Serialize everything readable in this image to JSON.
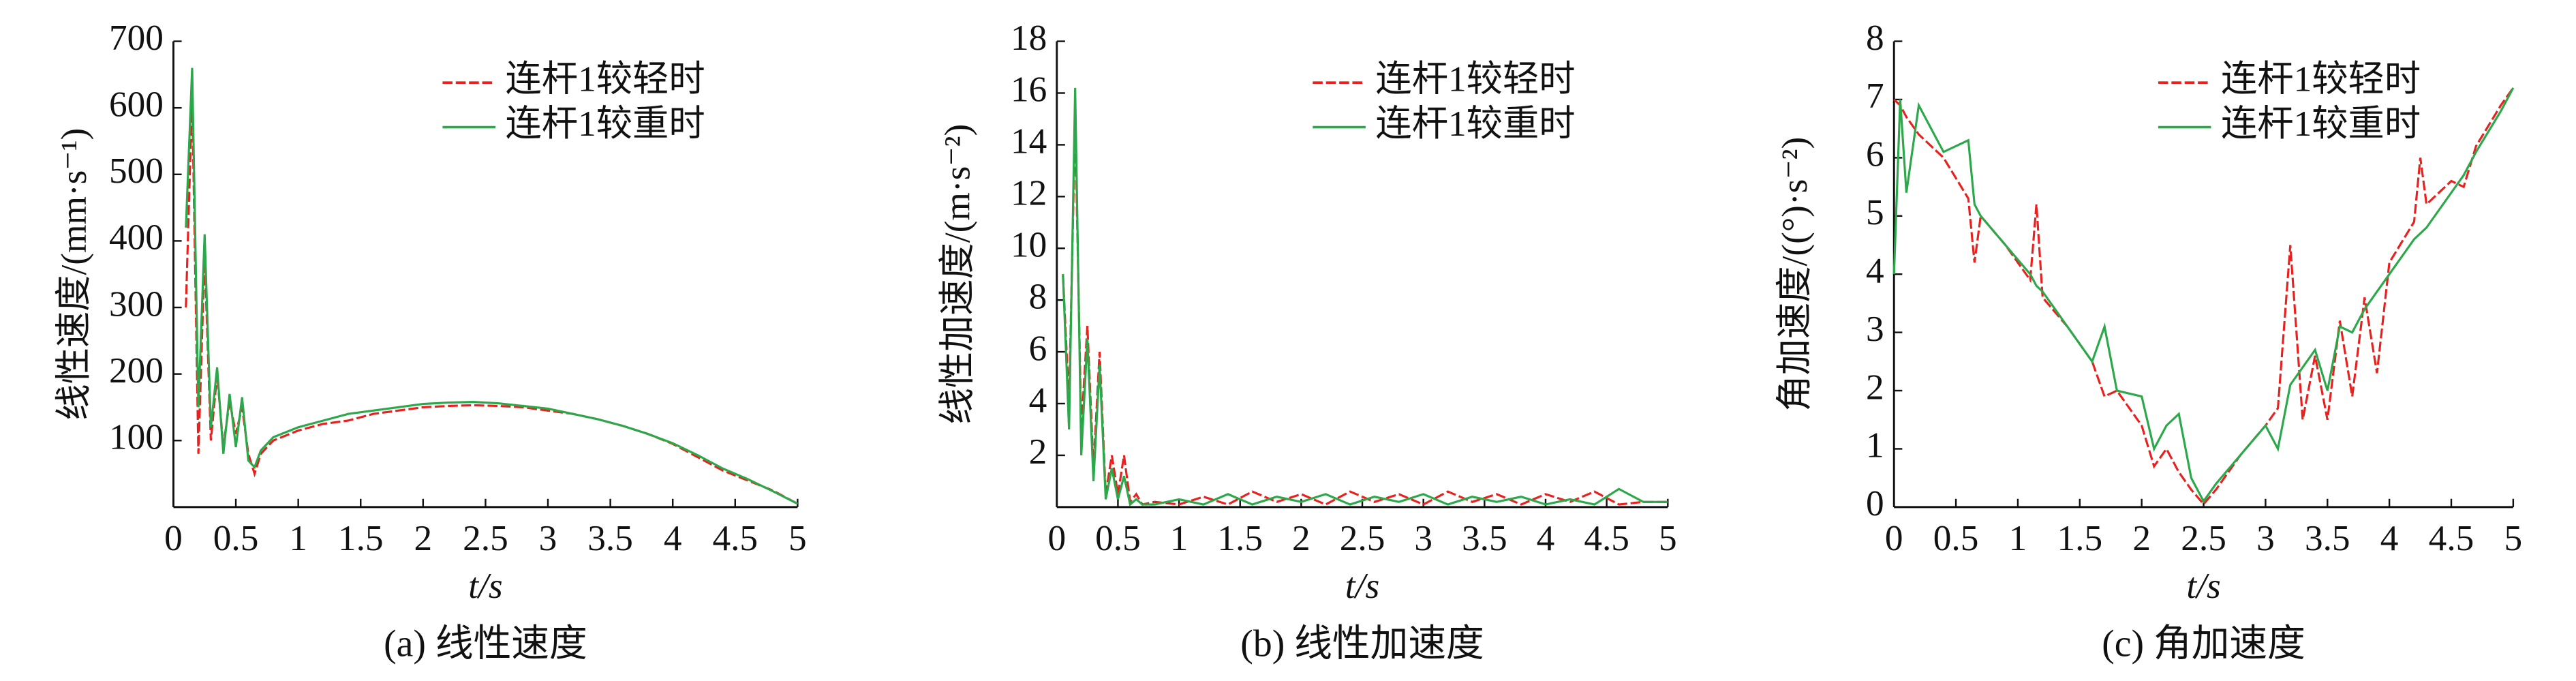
{
  "chart_data": [
    {
      "type": "line",
      "caption": "(a) 线性速度",
      "xlabel": "t/s",
      "ylabel": "线性速度/(mm·s⁻¹)",
      "xlim": [
        0,
        5
      ],
      "xticks": [
        0,
        0.5,
        1,
        1.5,
        2,
        2.5,
        3,
        3.5,
        4,
        4.5,
        5
      ],
      "ylim": [
        0,
        700
      ],
      "yticks": [
        100,
        200,
        300,
        400,
        500,
        600,
        700
      ],
      "legend": "upper right",
      "x": [
        0.1,
        0.15,
        0.2,
        0.25,
        0.3,
        0.35,
        0.4,
        0.45,
        0.5,
        0.55,
        0.6,
        0.65,
        0.7,
        0.8,
        1.0,
        1.2,
        1.4,
        1.6,
        1.8,
        2.0,
        2.2,
        2.4,
        2.6,
        2.8,
        3.0,
        3.2,
        3.4,
        3.6,
        3.8,
        4.0,
        4.2,
        4.4,
        4.6,
        4.8,
        5.0
      ],
      "series": [
        {
          "name": "连杆1较轻时",
          "color": "#e8201e",
          "linestyle": "dashed",
          "values": [
            300,
            620,
            80,
            380,
            100,
            200,
            90,
            160,
            110,
            150,
            80,
            50,
            80,
            100,
            115,
            125,
            130,
            140,
            145,
            150,
            152,
            153,
            152,
            150,
            145,
            140,
            132,
            122,
            110,
            95,
            75,
            55,
            40,
            25,
            5
          ]
        },
        {
          "name": "连杆1较重时",
          "color": "#2aa84a",
          "linestyle": "solid",
          "values": [
            420,
            660,
            150,
            410,
            120,
            210,
            80,
            170,
            90,
            165,
            70,
            60,
            85,
            105,
            120,
            130,
            140,
            145,
            150,
            155,
            157,
            158,
            156,
            152,
            148,
            140,
            132,
            122,
            110,
            96,
            78,
            58,
            42,
            24,
            5
          ]
        }
      ]
    },
    {
      "type": "line",
      "caption": "(b) 线性加速度",
      "xlabel": "t/s",
      "ylabel": "线性加速度/(m·s⁻²)",
      "xlim": [
        0,
        5
      ],
      "xticks": [
        0,
        0.5,
        1,
        1.5,
        2,
        2.5,
        3,
        3.5,
        4,
        4.5,
        5
      ],
      "ylim": [
        0,
        18
      ],
      "yticks": [
        2,
        4,
        6,
        8,
        10,
        12,
        14,
        16,
        18
      ],
      "legend": "upper right",
      "x": [
        0.05,
        0.1,
        0.15,
        0.2,
        0.25,
        0.3,
        0.35,
        0.4,
        0.45,
        0.5,
        0.55,
        0.6,
        0.65,
        0.7,
        0.8,
        1.0,
        1.2,
        1.4,
        1.6,
        1.8,
        2.0,
        2.2,
        2.4,
        2.6,
        2.8,
        3.0,
        3.2,
        3.4,
        3.6,
        3.8,
        4.0,
        4.2,
        4.4,
        4.6,
        4.8,
        5.0
      ],
      "series": [
        {
          "name": "连杆1较轻时",
          "color": "#e8201e",
          "linestyle": "dashed",
          "values": [
            9,
            4,
            15,
            3,
            7,
            1.5,
            6,
            0.5,
            2,
            0.5,
            2,
            0.2,
            0.5,
            0.1,
            0.2,
            0.1,
            0.4,
            0.1,
            0.6,
            0.2,
            0.5,
            0.1,
            0.6,
            0.2,
            0.5,
            0.1,
            0.6,
            0.2,
            0.5,
            0.1,
            0.5,
            0.2,
            0.6,
            0.1,
            0.2,
            0.2
          ]
        },
        {
          "name": "连杆1较重时",
          "color": "#2aa84a",
          "linestyle": "solid",
          "values": [
            9,
            3,
            16.2,
            2,
            6.5,
            1,
            5.5,
            0.3,
            1.5,
            0.3,
            1.2,
            0.1,
            0.3,
            0.1,
            0.1,
            0.3,
            0.1,
            0.5,
            0.1,
            0.4,
            0.2,
            0.5,
            0.1,
            0.4,
            0.2,
            0.5,
            0.1,
            0.4,
            0.2,
            0.4,
            0.1,
            0.3,
            0.1,
            0.7,
            0.2,
            0.2
          ]
        }
      ]
    },
    {
      "type": "line",
      "caption": "(c) 角加速度",
      "xlabel": "t/s",
      "ylabel": "角加速度/((°)·s⁻²)",
      "xlim": [
        0,
        5
      ],
      "xticks": [
        0,
        0.5,
        1,
        1.5,
        2,
        2.5,
        3,
        3.5,
        4,
        4.5,
        5
      ],
      "ylim": [
        0,
        8
      ],
      "yticks": [
        0,
        1,
        2,
        3,
        4,
        5,
        6,
        7,
        8
      ],
      "legend": "upper right",
      "x": [
        0,
        0.05,
        0.1,
        0.2,
        0.3,
        0.4,
        0.6,
        0.65,
        0.7,
        0.9,
        1.1,
        1.15,
        1.2,
        1.4,
        1.6,
        1.7,
        1.8,
        2.0,
        2.1,
        2.2,
        2.3,
        2.4,
        2.5,
        2.6,
        2.8,
        3.0,
        3.1,
        3.2,
        3.3,
        3.4,
        3.5,
        3.6,
        3.7,
        3.8,
        3.9,
        4.0,
        4.2,
        4.25,
        4.3,
        4.5,
        4.6,
        4.7,
        4.9,
        5.0
      ],
      "series": [
        {
          "name": "连杆1较轻时",
          "color": "#e8201e",
          "linestyle": "dashed",
          "values": [
            7,
            6.9,
            6.7,
            6.4,
            6.2,
            6.0,
            5.3,
            4.2,
            5.0,
            4.5,
            3.9,
            5.2,
            3.6,
            3.1,
            2.5,
            1.9,
            2.0,
            1.4,
            0.7,
            1.0,
            0.6,
            0.3,
            0.05,
            0.3,
            0.9,
            1.4,
            1.7,
            4.5,
            1.5,
            2.6,
            1.5,
            3.2,
            1.9,
            3.6,
            2.3,
            4.2,
            4.9,
            6.0,
            5.2,
            5.6,
            5.5,
            6.2,
            6.9,
            7.2
          ]
        },
        {
          "name": "连杆1较重时",
          "color": "#2aa84a",
          "linestyle": "solid",
          "values": [
            4,
            7.0,
            5.4,
            6.9,
            6.5,
            6.1,
            6.3,
            5.2,
            5.0,
            4.5,
            4.0,
            3.8,
            3.7,
            3.1,
            2.5,
            3.1,
            2.0,
            1.9,
            1.0,
            1.4,
            1.6,
            0.5,
            0.1,
            0.4,
            0.9,
            1.4,
            1.0,
            2.1,
            2.4,
            2.7,
            2.0,
            3.1,
            3.0,
            3.4,
            3.7,
            4.0,
            4.6,
            4.7,
            4.8,
            5.4,
            5.7,
            6.1,
            6.8,
            7.2
          ]
        }
      ]
    }
  ]
}
